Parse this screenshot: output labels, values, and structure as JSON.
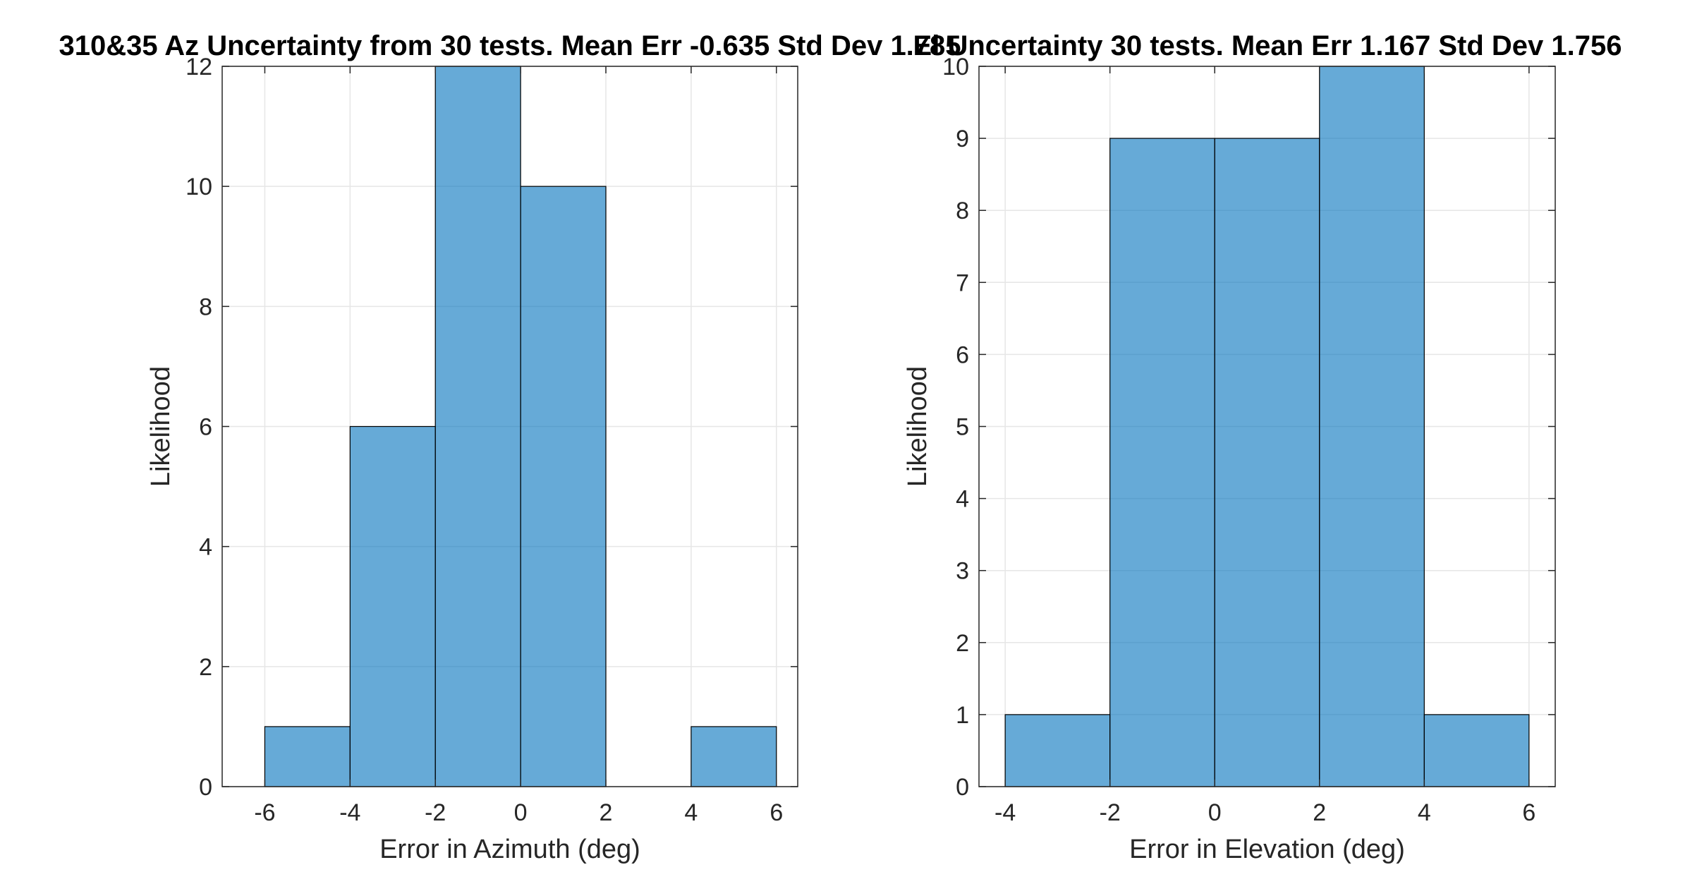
{
  "chart_data": [
    {
      "type": "bar",
      "title": "310&35 Az Uncertainty from 30 tests. Mean Err -0.635 Std Dev 1.785",
      "xlabel": "Error in Azimuth (deg)",
      "ylabel": "Likelihood",
      "bin_edges": [
        -6,
        -4,
        -2,
        0,
        2,
        4,
        6
      ],
      "values": [
        1,
        6,
        12,
        10,
        0,
        1
      ],
      "xlim": [
        -7,
        6.5
      ],
      "ylim": [
        0,
        12
      ],
      "xticks": [
        -6,
        -4,
        -2,
        0,
        2,
        4,
        6
      ],
      "xtick_labels": [
        "-6",
        "-4",
        "-2",
        "0",
        "2",
        "4",
        "6"
      ],
      "yticks": [
        0,
        2,
        4,
        6,
        8,
        10,
        12
      ],
      "ytick_labels": [
        "0",
        "2",
        "4",
        "6",
        "8",
        "10",
        "12"
      ],
      "bar_color": "#0072bd",
      "grid": true
    },
    {
      "type": "bar",
      "title": "El Uncertainty 30 tests. Mean Err 1.167 Std Dev 1.756",
      "xlabel": "Error in Elevation (deg)",
      "ylabel": "Likelihood",
      "bin_edges": [
        -4,
        -2,
        0,
        2,
        4,
        6
      ],
      "values": [
        1,
        9,
        9,
        10,
        1
      ],
      "xlim": [
        -4.5,
        6.5
      ],
      "ylim": [
        0,
        10
      ],
      "xticks": [
        -4,
        -2,
        0,
        2,
        4,
        6
      ],
      "xtick_labels": [
        "-4",
        "-2",
        "0",
        "2",
        "4",
        "6"
      ],
      "yticks": [
        0,
        1,
        2,
        3,
        4,
        5,
        6,
        7,
        8,
        9,
        10
      ],
      "ytick_labels": [
        "0",
        "1",
        "2",
        "3",
        "4",
        "5",
        "6",
        "7",
        "8",
        "9",
        "10"
      ],
      "bar_color": "#0072bd",
      "grid": true
    }
  ]
}
